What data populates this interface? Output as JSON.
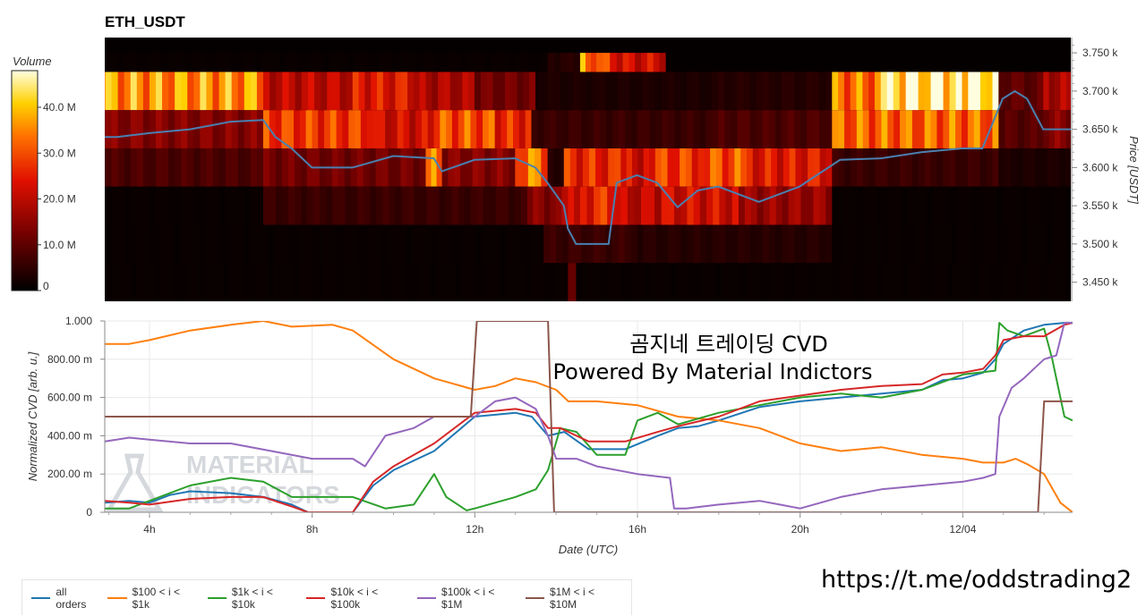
{
  "chart_data": [
    {
      "type": "heatmap",
      "title": "ETH_USDT",
      "ylabel": "Price [USDT]",
      "y_ticks": [
        "3.450 k",
        "3.500 k",
        "3.550 k",
        "3.600 k",
        "3.650 k",
        "3.700 k",
        "3.750 k"
      ],
      "ylim": [
        3425,
        3770
      ],
      "price_bins": [
        3700,
        3650,
        3600,
        3550,
        3500,
        3450
      ],
      "colorbar": {
        "label": "Volume",
        "ticks": [
          "0",
          "10.0 M",
          "20.0 M",
          "30.0 M",
          "40.0 M"
        ],
        "range": [
          0,
          48
        ]
      },
      "volume_rows": [
        {
          "price": 3725,
          "segments": [
            [
              2.6,
              13.8,
              1
            ],
            [
              13.8,
              14.6,
              4
            ],
            [
              14.6,
              15.0,
              34
            ],
            [
              15.0,
              15.5,
              28
            ],
            [
              15.5,
              16.7,
              22
            ]
          ]
        },
        {
          "price": 3700,
          "segments": [
            [
              2.6,
              6.8,
              36
            ],
            [
              6.8,
              9.0,
              20
            ],
            [
              9.0,
              10.5,
              24
            ],
            [
              10.5,
              12.0,
              18
            ],
            [
              12.0,
              13.5,
              12
            ],
            [
              13.5,
              18.0,
              3
            ],
            [
              18.0,
              20.8,
              4
            ],
            [
              20.8,
              22.0,
              33
            ],
            [
              22.0,
              24.0,
              45
            ],
            [
              24.0,
              24.9,
              47
            ],
            [
              24.9,
              26.0,
              10
            ],
            [
              26.0,
              26.7,
              18
            ]
          ]
        },
        {
          "price": 3650,
          "segments": [
            [
              2.6,
              6.8,
              14
            ],
            [
              6.8,
              9.5,
              28
            ],
            [
              9.5,
              11.0,
              22
            ],
            [
              11.0,
              12.5,
              30
            ],
            [
              12.5,
              13.4,
              26
            ],
            [
              13.4,
              18.0,
              6
            ],
            [
              18.0,
              20.8,
              8
            ],
            [
              20.8,
              24.9,
              32
            ],
            [
              24.9,
              26.0,
              9
            ],
            [
              26.0,
              26.7,
              14
            ]
          ]
        },
        {
          "price": 3600,
          "segments": [
            [
              2.6,
              6.8,
              8
            ],
            [
              6.8,
              10.8,
              12
            ],
            [
              10.8,
              11.2,
              32
            ],
            [
              11.2,
              13.0,
              14
            ],
            [
              13.0,
              13.8,
              33
            ],
            [
              13.8,
              14.2,
              4
            ],
            [
              14.2,
              15.6,
              26
            ],
            [
              15.6,
              16.3,
              22
            ],
            [
              16.3,
              17.5,
              28
            ],
            [
              17.5,
              18.7,
              30
            ],
            [
              18.7,
              20.8,
              24
            ],
            [
              20.8,
              24.9,
              6
            ],
            [
              24.9,
              26.7,
              3
            ]
          ]
        },
        {
          "price": 3550,
          "segments": [
            [
              2.6,
              6.8,
              1
            ],
            [
              6.8,
              13.3,
              6
            ],
            [
              13.3,
              14.0,
              14
            ],
            [
              14.0,
              14.6,
              20
            ],
            [
              14.6,
              15.6,
              26
            ],
            [
              15.6,
              16.6,
              20
            ],
            [
              16.6,
              18.5,
              22
            ],
            [
              18.5,
              20.8,
              16
            ],
            [
              20.8,
              26.7,
              1
            ]
          ]
        },
        {
          "price": 3500,
          "segments": [
            [
              2.6,
              13.7,
              1
            ],
            [
              13.7,
              16.0,
              6
            ],
            [
              16.0,
              20.8,
              4
            ],
            [
              20.8,
              26.7,
              1
            ]
          ]
        },
        {
          "price": 3450,
          "segments": [
            [
              2.6,
              14.3,
              1
            ],
            [
              14.3,
              14.5,
              12
            ],
            [
              14.5,
              26.7,
              1
            ]
          ]
        }
      ],
      "price_line": {
        "x": [
          2.6,
          3.2,
          4.0,
          5.0,
          6.0,
          6.8,
          7.1,
          7.5,
          8.0,
          9.0,
          10.0,
          11.0,
          11.2,
          12.0,
          13.0,
          13.5,
          13.8,
          14.2,
          14.3,
          14.5,
          15.3,
          15.5,
          16.0,
          16.5,
          17.0,
          17.5,
          18.0,
          19.0,
          20.0,
          21.0,
          22.0,
          23.0,
          24.0,
          24.5,
          25.0,
          25.3,
          25.6,
          26.0,
          26.4,
          26.7
        ],
        "y": [
          3640,
          3640,
          3645,
          3650,
          3660,
          3662,
          3640,
          3625,
          3600,
          3600,
          3615,
          3612,
          3595,
          3610,
          3612,
          3600,
          3580,
          3550,
          3520,
          3500,
          3500,
          3580,
          3590,
          3580,
          3548,
          3570,
          3575,
          3555,
          3575,
          3610,
          3612,
          3620,
          3625,
          3625,
          3690,
          3700,
          3690,
          3650,
          3650,
          3650
        ]
      },
      "line_color": "#4a80b0"
    },
    {
      "type": "line",
      "xlabel": "Date (UTC)",
      "ylabel": "Normalized CVD [arb. u.]",
      "xlim": [
        2.9,
        26.7
      ],
      "ylim": [
        0,
        1
      ],
      "x_ticks": [
        {
          "v": 4,
          "label": "4h"
        },
        {
          "v": 8,
          "label": "8h"
        },
        {
          "v": 12,
          "label": "12h"
        },
        {
          "v": 16,
          "label": "16h"
        },
        {
          "v": 20,
          "label": "20h"
        },
        {
          "v": 24,
          "label": "12/04"
        }
      ],
      "y_ticks": [
        {
          "v": 0,
          "label": "0"
        },
        {
          "v": 0.2,
          "label": "200.00 m"
        },
        {
          "v": 0.4,
          "label": "400.00 m"
        },
        {
          "v": 0.6,
          "label": "600.00 m"
        },
        {
          "v": 0.8,
          "label": "800.00 m"
        },
        {
          "v": 1.0,
          "label": "1.000"
        }
      ],
      "grid": true,
      "legend_position": "bottom-left",
      "series": [
        {
          "name": "all orders",
          "color": "#1f77b4",
          "x": [
            2.9,
            3.5,
            4.0,
            4.5,
            5.0,
            6.0,
            6.8,
            7.5,
            7.9,
            9.0,
            9.5,
            10.0,
            11.0,
            12.0,
            13.0,
            13.4,
            13.8,
            14.2,
            14.8,
            15.0,
            15.7,
            16.5,
            17.0,
            17.5,
            18.0,
            19.0,
            20.0,
            21.0,
            22.0,
            23.0,
            23.5,
            24.0,
            24.5,
            24.8,
            25.0,
            25.5,
            26.0,
            26.5,
            26.7
          ],
          "y": [
            0.05,
            0.06,
            0.05,
            0.09,
            0.11,
            0.1,
            0.08,
            0.04,
            0.0,
            0.0,
            0.14,
            0.22,
            0.32,
            0.5,
            0.52,
            0.5,
            0.4,
            0.42,
            0.33,
            0.33,
            0.33,
            0.4,
            0.44,
            0.45,
            0.48,
            0.55,
            0.58,
            0.6,
            0.62,
            0.64,
            0.69,
            0.7,
            0.73,
            0.8,
            0.88,
            0.95,
            0.98,
            0.99,
            0.99
          ]
        },
        {
          "name": "$100 < i < $1k",
          "color": "#ff7f0e",
          "x": [
            2.9,
            3.5,
            4.0,
            5.0,
            6.0,
            6.8,
            7.5,
            8.5,
            9.0,
            10.0,
            11.0,
            12.0,
            12.5,
            13.0,
            13.5,
            14.0,
            14.3,
            15.0,
            16.0,
            17.0,
            18.0,
            19.0,
            20.0,
            21.0,
            22.0,
            23.0,
            24.0,
            24.5,
            25.0,
            25.3,
            25.6,
            26.0,
            26.4,
            26.7
          ],
          "y": [
            0.88,
            0.88,
            0.9,
            0.95,
            0.98,
            1.0,
            0.97,
            0.98,
            0.95,
            0.8,
            0.7,
            0.64,
            0.66,
            0.7,
            0.68,
            0.64,
            0.58,
            0.58,
            0.56,
            0.5,
            0.48,
            0.44,
            0.36,
            0.32,
            0.34,
            0.3,
            0.28,
            0.26,
            0.26,
            0.28,
            0.25,
            0.2,
            0.05,
            0.0
          ]
        },
        {
          "name": "$1k < i < $10k",
          "color": "#2ca02c",
          "x": [
            2.9,
            3.5,
            4.0,
            4.5,
            5.0,
            6.0,
            6.8,
            7.5,
            8.0,
            9.0,
            9.8,
            10.5,
            11.0,
            11.3,
            11.8,
            12.0,
            13.0,
            13.5,
            13.8,
            14.1,
            14.5,
            15.0,
            15.7,
            16.0,
            16.5,
            17.0,
            18.0,
            19.0,
            20.0,
            21.0,
            22.0,
            23.0,
            24.0,
            24.8,
            24.9,
            25.1,
            25.5,
            26.0,
            26.2,
            26.5,
            26.7
          ],
          "y": [
            0.02,
            0.02,
            0.06,
            0.1,
            0.14,
            0.18,
            0.16,
            0.08,
            0.08,
            0.08,
            0.02,
            0.04,
            0.2,
            0.08,
            0.01,
            0.02,
            0.08,
            0.12,
            0.22,
            0.44,
            0.42,
            0.3,
            0.3,
            0.48,
            0.52,
            0.46,
            0.52,
            0.56,
            0.6,
            0.62,
            0.6,
            0.64,
            0.72,
            0.74,
            0.99,
            0.95,
            0.92,
            0.96,
            0.8,
            0.5,
            0.48
          ]
        },
        {
          "name": "$10k < i < $100k",
          "color": "#d62728",
          "x": [
            2.9,
            3.5,
            4.0,
            5.0,
            6.0,
            6.8,
            7.5,
            7.9,
            9.0,
            9.5,
            10.0,
            11.0,
            12.0,
            13.0,
            13.5,
            13.8,
            14.1,
            14.8,
            15.0,
            15.7,
            16.5,
            17.0,
            18.0,
            19.0,
            20.0,
            21.0,
            22.0,
            23.0,
            23.5,
            24.0,
            24.5,
            24.8,
            25.0,
            25.5,
            26.0,
            26.5,
            26.7
          ],
          "y": [
            0.06,
            0.05,
            0.04,
            0.07,
            0.08,
            0.08,
            0.03,
            0.0,
            0.0,
            0.16,
            0.24,
            0.36,
            0.52,
            0.54,
            0.52,
            0.44,
            0.44,
            0.37,
            0.37,
            0.37,
            0.42,
            0.45,
            0.5,
            0.58,
            0.61,
            0.64,
            0.66,
            0.67,
            0.72,
            0.73,
            0.75,
            0.82,
            0.9,
            0.92,
            0.92,
            0.98,
            0.99
          ]
        },
        {
          "name": "$100k < i < $1M",
          "color": "#9467bd",
          "x": [
            2.9,
            3.5,
            4.0,
            5.0,
            6.0,
            7.0,
            8.0,
            9.0,
            9.3,
            9.8,
            10.5,
            11.0,
            12.0,
            12.5,
            13.0,
            13.5,
            13.8,
            14.0,
            14.5,
            15.0,
            16.0,
            16.8,
            16.9,
            17.2,
            18.0,
            19.0,
            19.5,
            20.0,
            21.0,
            22.0,
            23.0,
            24.0,
            24.5,
            24.8,
            24.9,
            25.2,
            25.5,
            26.0,
            26.3,
            26.5,
            26.7
          ],
          "y": [
            0.37,
            0.39,
            0.38,
            0.36,
            0.36,
            0.32,
            0.28,
            0.28,
            0.24,
            0.4,
            0.44,
            0.5,
            0.5,
            0.58,
            0.6,
            0.54,
            0.4,
            0.28,
            0.28,
            0.24,
            0.2,
            0.18,
            0.02,
            0.02,
            0.04,
            0.06,
            0.04,
            0.02,
            0.08,
            0.12,
            0.14,
            0.16,
            0.18,
            0.2,
            0.5,
            0.65,
            0.7,
            0.8,
            0.82,
            0.99,
            0.99
          ]
        },
        {
          "name": "$1M < i < $10M",
          "color": "#8c564b",
          "x": [
            2.9,
            11.9,
            12.05,
            13.8,
            13.95,
            25.85,
            26.0,
            26.7
          ],
          "y": [
            0.5,
            0.5,
            1.0,
            1.0,
            0.0,
            0.0,
            0.58,
            0.58
          ]
        }
      ]
    }
  ],
  "watermark": {
    "line1": "곰지네 트레이딩 CVD",
    "line2": "Powered By Material Indictors",
    "logo_line1": "MATERIAL",
    "logo_line2": "INDICATORS"
  },
  "footer_link": "https://t.me/oddstrading2",
  "colors": {
    "line_price": "#4a80b0",
    "grid": "#e8e8e8"
  }
}
